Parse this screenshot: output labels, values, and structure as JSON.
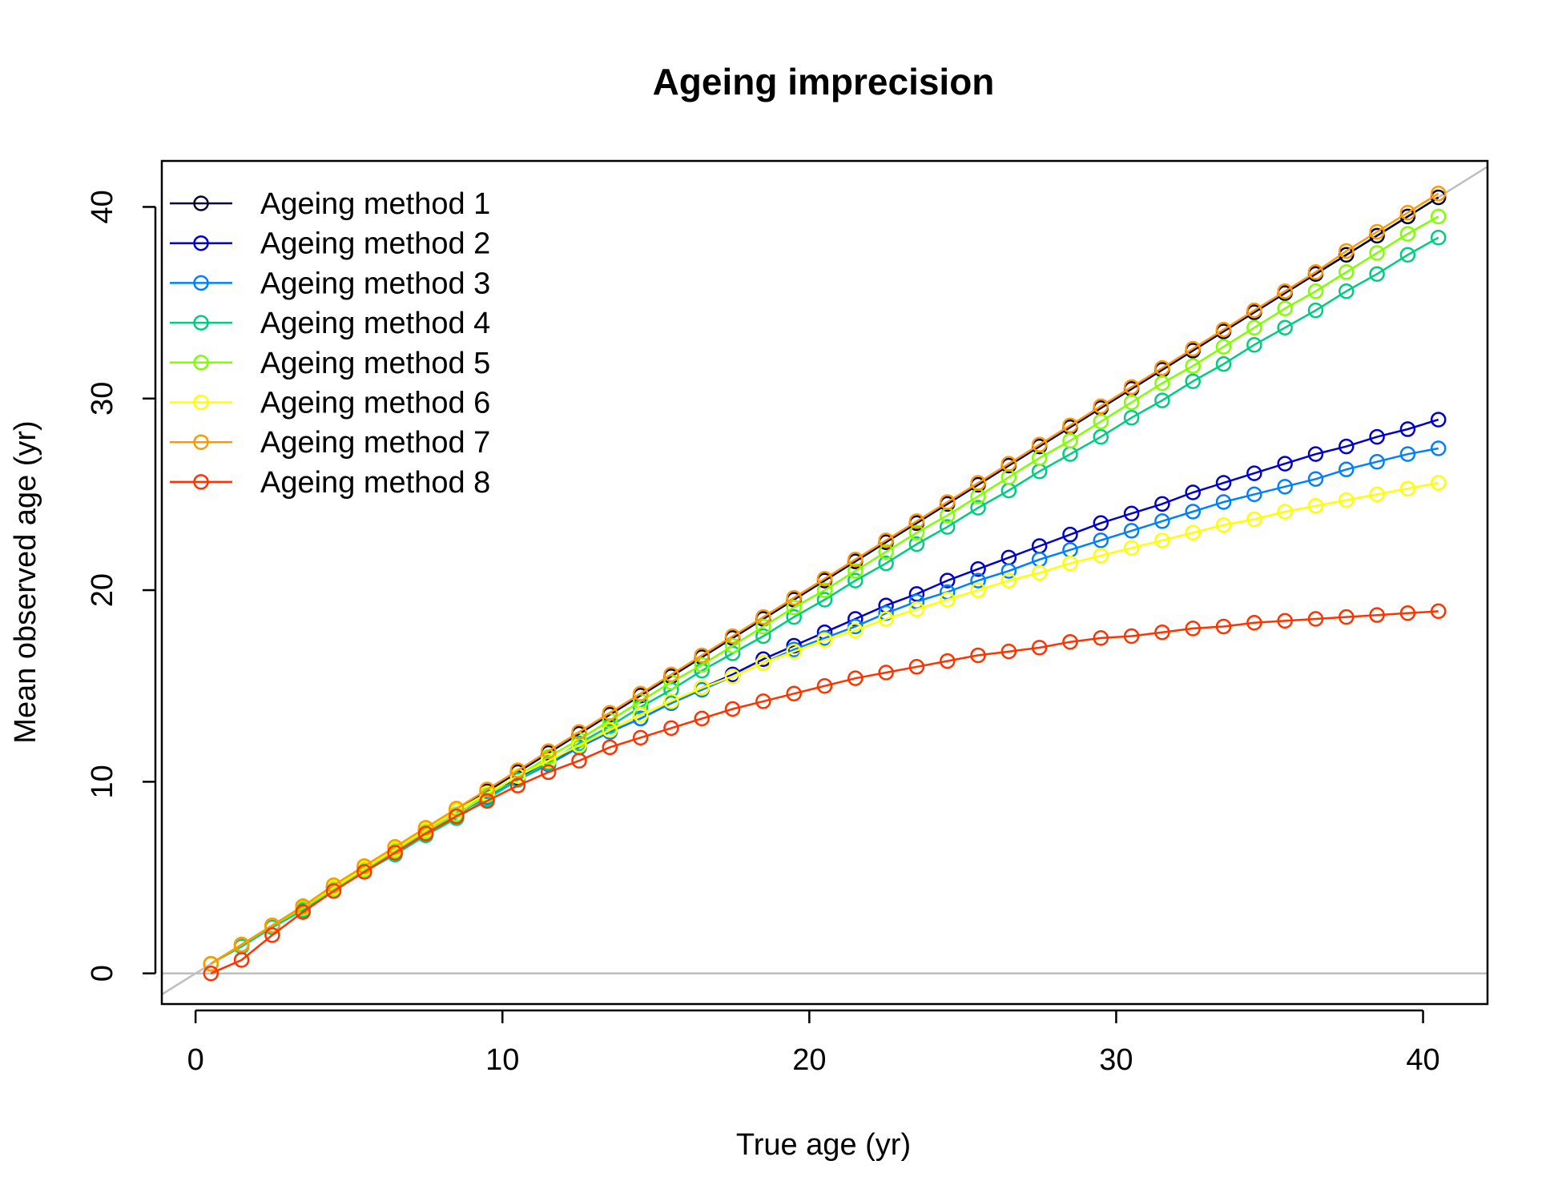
{
  "chart_data": {
    "type": "line",
    "title": "Ageing imprecision",
    "xlabel": "True age (yr)",
    "ylabel": "Mean observed age (yr)",
    "xlim": [
      -1.1,
      42.1
    ],
    "ylim": [
      -1.6,
      42.4
    ],
    "xticks": [
      0,
      10,
      20,
      30,
      40
    ],
    "yticks": [
      0,
      10,
      20,
      30,
      40
    ],
    "reference_lines": [
      "y = x",
      "y = 0"
    ],
    "reference_color": "#bebebe",
    "legend_position": "top-left",
    "x": [
      0.5,
      1.5,
      2.5,
      3.5,
      4.5,
      5.5,
      6.5,
      7.5,
      8.5,
      9.5,
      10.5,
      11.5,
      12.5,
      13.5,
      14.5,
      15.5,
      16.5,
      17.5,
      18.5,
      19.5,
      20.5,
      21.5,
      22.5,
      23.5,
      24.5,
      25.5,
      26.5,
      27.5,
      28.5,
      29.5,
      30.5,
      31.5,
      32.5,
      33.5,
      34.5,
      35.5,
      36.5,
      37.5,
      38.5,
      39.5,
      40.5
    ],
    "series": [
      {
        "name": "Ageing method 1",
        "color": "#000033",
        "values": [
          0.5,
          1.5,
          2.5,
          3.5,
          4.5,
          5.5,
          6.5,
          7.5,
          8.5,
          9.5,
          10.5,
          11.5,
          12.5,
          13.5,
          14.5,
          15.5,
          16.5,
          17.5,
          18.5,
          19.5,
          20.5,
          21.5,
          22.5,
          23.5,
          24.5,
          25.5,
          26.5,
          27.5,
          28.5,
          29.5,
          30.5,
          31.5,
          32.5,
          33.5,
          34.5,
          35.5,
          36.5,
          37.5,
          38.5,
          39.5,
          40.5
        ]
      },
      {
        "name": "Ageing method 2",
        "color": "#0000cc",
        "values": [
          0.5,
          1.5,
          2.5,
          3.5,
          4.5,
          5.5,
          6.5,
          7.5,
          8.5,
          9.4,
          10.2,
          11.0,
          11.8,
          12.6,
          13.3,
          14.1,
          14.9,
          15.6,
          16.4,
          17.1,
          17.8,
          18.5,
          19.2,
          19.8,
          20.5,
          21.1,
          21.7,
          22.3,
          22.9,
          23.5,
          24.0,
          24.5,
          25.1,
          25.6,
          26.1,
          26.6,
          27.1,
          27.5,
          28.0,
          28.4,
          28.9
        ]
      },
      {
        "name": "Ageing method 3",
        "color": "#0080ff",
        "values": [
          0.5,
          1.5,
          2.5,
          3.5,
          4.5,
          5.5,
          6.5,
          7.4,
          8.3,
          9.2,
          10.1,
          10.9,
          11.8,
          12.6,
          13.3,
          14.1,
          14.8,
          15.5,
          16.2,
          16.9,
          17.5,
          18.1,
          18.8,
          19.4,
          19.9,
          20.5,
          21.0,
          21.6,
          22.1,
          22.6,
          23.1,
          23.6,
          24.1,
          24.6,
          25.0,
          25.4,
          25.8,
          26.3,
          26.7,
          27.1,
          27.4
        ]
      },
      {
        "name": "Ageing method 4",
        "color": "#00cc80",
        "values": [
          0.5,
          1.4,
          2.4,
          3.3,
          4.3,
          5.3,
          6.2,
          7.2,
          8.1,
          9.1,
          10.1,
          11.0,
          12.0,
          12.9,
          13.9,
          14.8,
          15.8,
          16.7,
          17.6,
          18.6,
          19.5,
          20.5,
          21.4,
          22.4,
          23.3,
          24.3,
          25.2,
          26.2,
          27.1,
          28.0,
          29.0,
          29.9,
          30.9,
          31.8,
          32.8,
          33.7,
          34.6,
          35.6,
          36.5,
          37.5,
          38.4
        ]
      },
      {
        "name": "Ageing method 5",
        "color": "#80ff00",
        "values": [
          0.5,
          1.5,
          2.5,
          3.4,
          4.4,
          5.4,
          6.4,
          7.4,
          8.3,
          9.3,
          10.3,
          11.3,
          12.2,
          13.2,
          14.2,
          15.2,
          16.1,
          17.1,
          18.1,
          19.1,
          20.0,
          21.0,
          22.0,
          23.0,
          23.9,
          24.9,
          25.9,
          26.9,
          27.8,
          28.8,
          29.8,
          30.8,
          31.7,
          32.7,
          33.7,
          34.7,
          35.6,
          36.6,
          37.6,
          38.6,
          39.5
        ]
      },
      {
        "name": "Ageing method 6",
        "color": "#ffff00",
        "values": [
          0.5,
          1.5,
          2.5,
          3.5,
          4.5,
          5.5,
          6.5,
          7.5,
          8.5,
          9.4,
          10.3,
          11.1,
          11.9,
          12.7,
          13.5,
          14.2,
          14.9,
          15.5,
          16.2,
          16.8,
          17.4,
          17.9,
          18.5,
          19.0,
          19.5,
          20.0,
          20.5,
          20.9,
          21.4,
          21.8,
          22.2,
          22.6,
          23.0,
          23.4,
          23.7,
          24.1,
          24.4,
          24.7,
          25.0,
          25.3,
          25.6
        ]
      },
      {
        "name": "Ageing method 7",
        "color": "#ff9900",
        "values": [
          0.5,
          1.5,
          2.5,
          3.5,
          4.6,
          5.6,
          6.6,
          7.6,
          8.6,
          9.6,
          10.6,
          11.6,
          12.6,
          13.6,
          14.6,
          15.6,
          16.6,
          17.6,
          18.6,
          19.6,
          20.6,
          21.6,
          22.6,
          23.6,
          24.6,
          25.6,
          26.6,
          27.6,
          28.6,
          29.6,
          30.6,
          31.6,
          32.6,
          33.6,
          34.6,
          35.6,
          36.6,
          37.7,
          38.7,
          39.7,
          40.7
        ]
      },
      {
        "name": "Ageing method 8",
        "color": "#ff3300",
        "values": [
          0.0,
          0.7,
          2.0,
          3.2,
          4.3,
          5.3,
          6.3,
          7.3,
          8.2,
          9.0,
          9.8,
          10.5,
          11.1,
          11.8,
          12.3,
          12.8,
          13.3,
          13.8,
          14.2,
          14.6,
          15.0,
          15.4,
          15.7,
          16.0,
          16.3,
          16.6,
          16.8,
          17.0,
          17.3,
          17.5,
          17.6,
          17.8,
          18.0,
          18.1,
          18.3,
          18.4,
          18.5,
          18.6,
          18.7,
          18.8,
          18.9
        ]
      }
    ]
  }
}
